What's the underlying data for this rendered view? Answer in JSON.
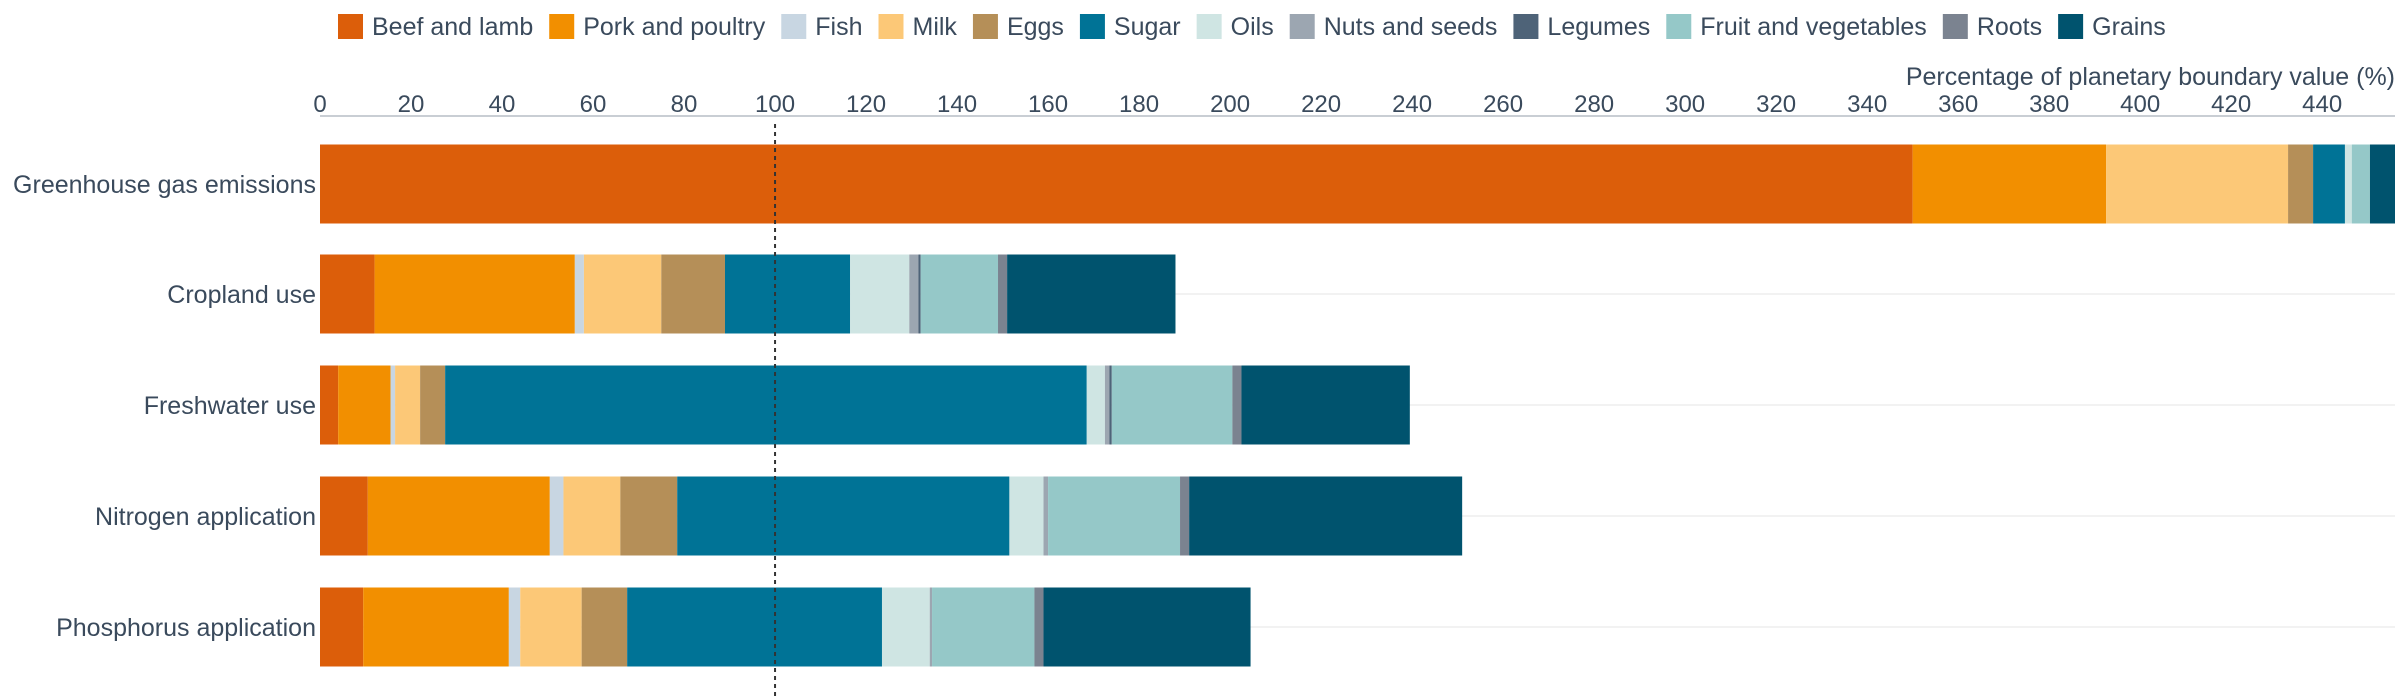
{
  "chart_data": {
    "type": "bar",
    "orientation": "horizontal",
    "stacked": true,
    "xlabel": "Percentage of planetary boundary value (%)",
    "xlim": [
      0,
      456
    ],
    "x_ticks": [
      "0",
      "20",
      "40",
      "60",
      "80",
      "100",
      "120",
      "140",
      "160",
      "180",
      "200",
      "220",
      "240",
      "260",
      "280",
      "300",
      "320",
      "340",
      "360",
      "380",
      "400",
      "420",
      "440"
    ],
    "reference_line": 100,
    "legend_position": "top",
    "categories": [
      "Greenhouse gas emissions",
      "Cropland use",
      "Freshwater use",
      "Nitrogen application",
      "Phosphorus application"
    ],
    "series": [
      {
        "name": "Beef and lamb",
        "color": "#dc5e0a",
        "values": [
          350,
          12,
          4,
          10.5,
          9.5
        ]
      },
      {
        "name": "Pork and poultry",
        "color": "#f28f00",
        "values": [
          42.5,
          44,
          11.5,
          40,
          32
        ]
      },
      {
        "name": "Fish",
        "color": "#c8d6e2",
        "values": [
          0,
          2,
          1,
          3,
          2.5
        ]
      },
      {
        "name": "Milk",
        "color": "#fcc877",
        "values": [
          40,
          17,
          5.5,
          12.5,
          13.5
        ]
      },
      {
        "name": "Eggs",
        "color": "#b58f58",
        "values": [
          5.5,
          14,
          5.5,
          12.5,
          10
        ]
      },
      {
        "name": "Sugar",
        "color": "#007396",
        "values": [
          7,
          27.5,
          141,
          73,
          56
        ]
      },
      {
        "name": "Oils",
        "color": "#cfe5e3",
        "values": [
          1.5,
          13,
          4,
          7.5,
          10.5
        ]
      },
      {
        "name": "Nuts and seeds",
        "color": "#9ca6b1",
        "values": [
          0,
          2,
          1,
          1,
          0.5
        ]
      },
      {
        "name": "Legumes",
        "color": "#4e6378",
        "values": [
          0,
          0.5,
          0.5,
          0,
          0
        ]
      },
      {
        "name": "Fruit and vegetables",
        "color": "#95c8c8",
        "values": [
          4,
          17,
          26.5,
          29,
          22.5
        ]
      },
      {
        "name": "Roots",
        "color": "#7b8390",
        "values": [
          0,
          2,
          2,
          2,
          2
        ]
      },
      {
        "name": "Grains",
        "color": "#00536e",
        "values": [
          5.5,
          37,
          37,
          60,
          45.5
        ]
      }
    ]
  }
}
